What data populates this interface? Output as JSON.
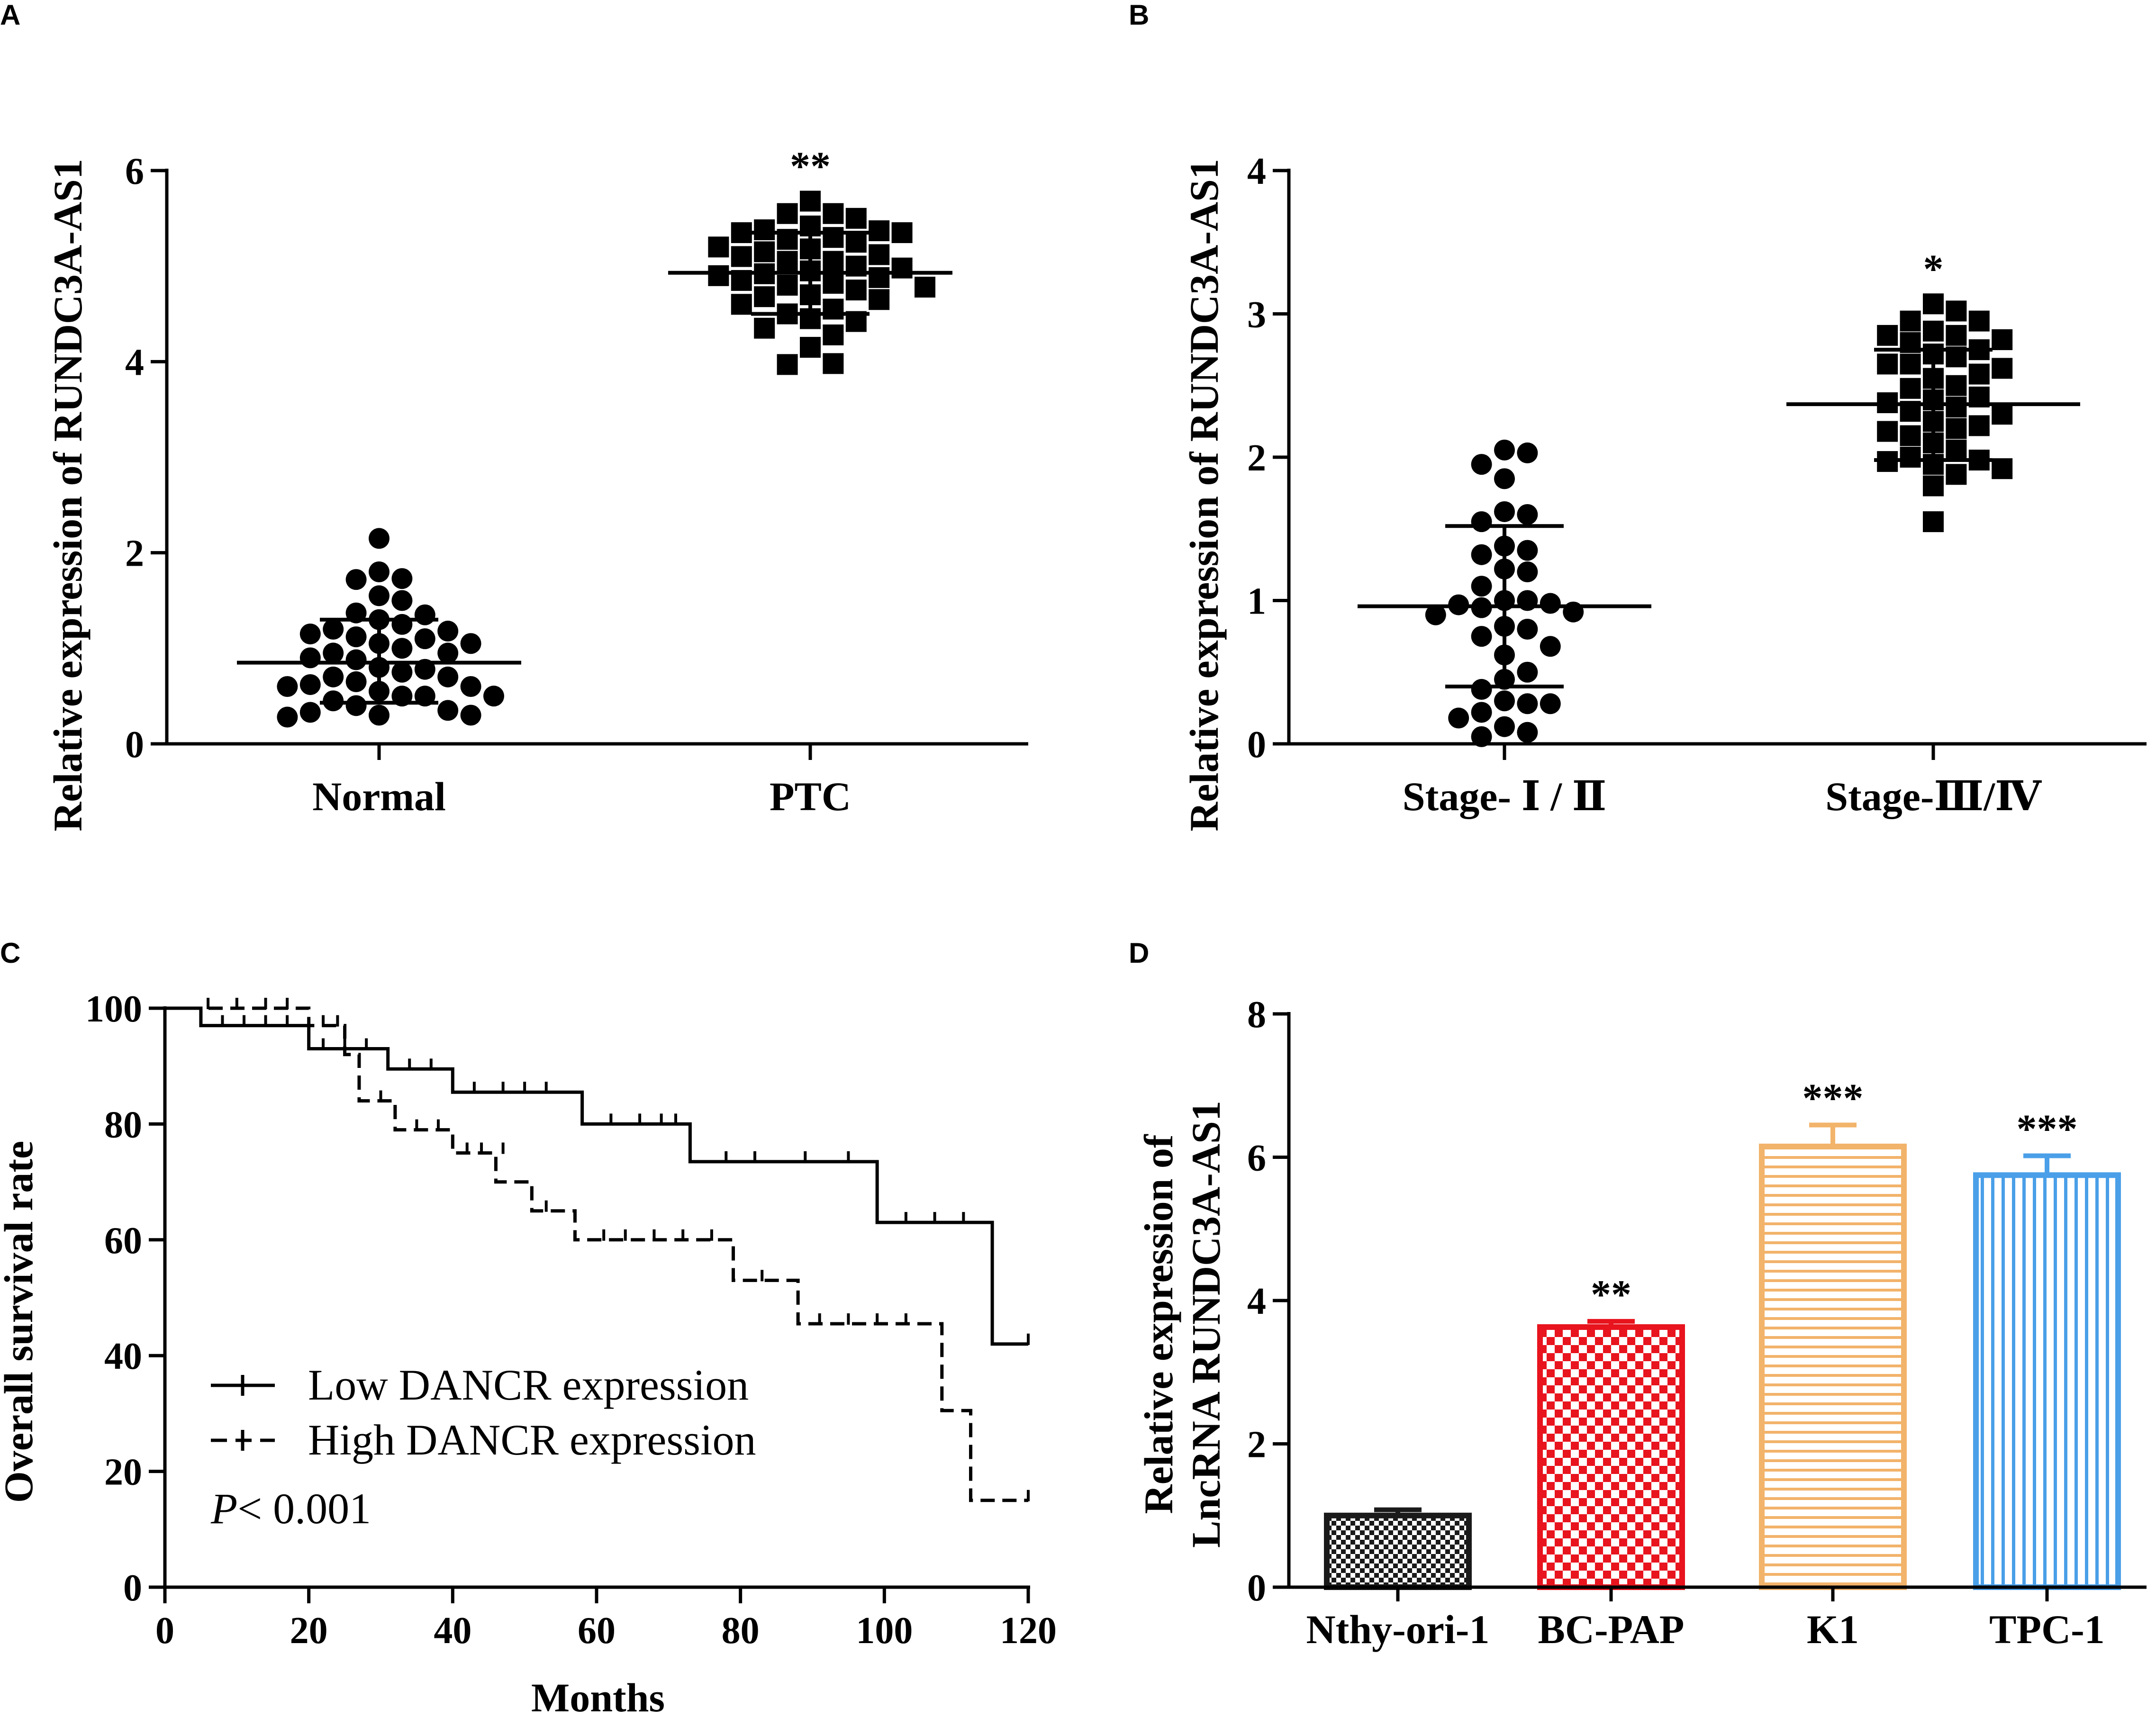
{
  "chart_data": [
    {
      "panel": "A",
      "type": "scatter",
      "ylabel": "Relative expression of RUNDC3A-AS1",
      "ylim": [
        0,
        6
      ],
      "yticks": [
        "0",
        "2",
        "4",
        "6"
      ],
      "categories": [
        "Normal",
        "PTC"
      ],
      "groups": [
        {
          "name": "Normal",
          "marker": "circle",
          "mean": 0.85,
          "sd_low": 0.43,
          "sd_high": 1.3,
          "values": [
            2.15,
            1.72,
            1.73,
            1.8,
            1.5,
            1.55,
            1.35,
            1.37,
            1.3,
            1.25,
            1.2,
            1.18,
            1.15,
            1.12,
            1.1,
            1.05,
            1.05,
            1.0,
            0.95,
            0.95,
            0.9,
            0.88,
            0.8,
            0.78,
            0.75,
            0.7,
            0.7,
            0.65,
            0.62,
            0.6,
            0.6,
            0.55,
            0.5,
            0.5,
            0.45,
            0.4,
            0.35,
            0.33,
            0.3,
            0.3,
            0.28,
            0.5
          ]
        },
        {
          "name": "PTC",
          "marker": "square",
          "mean": 4.93,
          "sd_low": 4.5,
          "sd_high": 5.35,
          "significance": "**",
          "values": [
            5.68,
            5.55,
            5.55,
            5.5,
            5.42,
            5.38,
            5.37,
            5.35,
            5.35,
            5.3,
            5.28,
            5.25,
            5.2,
            5.18,
            5.15,
            5.12,
            5.1,
            5.05,
            5.05,
            5.0,
            4.98,
            4.95,
            4.92,
            4.9,
            4.88,
            4.85,
            4.82,
            4.8,
            4.78,
            4.75,
            4.7,
            4.68,
            4.65,
            4.6,
            4.55,
            4.5,
            4.45,
            4.42,
            4.35,
            4.28,
            4.15,
            3.97,
            3.98
          ]
        }
      ]
    },
    {
      "panel": "B",
      "type": "scatter",
      "ylabel": "Relative expression of RUNDC3A-AS1",
      "ylim": [
        0,
        4
      ],
      "yticks": [
        "0",
        "1",
        "2",
        "3",
        "4"
      ],
      "categories": [
        "Stage- Ⅰ / Ⅱ",
        "Stage-Ⅲ/Ⅳ"
      ],
      "groups": [
        {
          "name": "Stage- Ⅰ / Ⅱ",
          "marker": "circle",
          "mean": 0.96,
          "sd_low": 0.4,
          "sd_high": 1.52,
          "values": [
            2.05,
            2.03,
            1.95,
            1.85,
            1.62,
            1.6,
            1.55,
            1.38,
            1.35,
            1.32,
            1.22,
            1.2,
            1.1,
            1.0,
            1.0,
            0.98,
            0.97,
            0.95,
            0.92,
            0.9,
            0.82,
            0.8,
            0.75,
            0.68,
            0.62,
            0.5,
            0.45,
            0.38,
            0.3,
            0.28,
            0.28,
            0.22,
            0.18,
            0.12,
            0.08,
            0.05
          ]
        },
        {
          "name": "Stage-Ⅲ/Ⅳ",
          "marker": "square",
          "mean": 2.37,
          "sd_low": 1.98,
          "sd_high": 2.75,
          "significance": "*",
          "values": [
            3.07,
            3.02,
            2.95,
            2.95,
            2.88,
            2.85,
            2.85,
            2.82,
            2.8,
            2.75,
            2.72,
            2.7,
            2.65,
            2.65,
            2.62,
            2.58,
            2.55,
            2.5,
            2.48,
            2.42,
            2.4,
            2.38,
            2.35,
            2.32,
            2.3,
            2.25,
            2.22,
            2.2,
            2.18,
            2.15,
            2.1,
            2.05,
            2.0,
            1.98,
            1.97,
            1.95,
            1.92,
            1.88,
            1.8,
            1.55
          ]
        }
      ]
    },
    {
      "panel": "C",
      "type": "line",
      "subtype": "kaplan-meier",
      "xlabel": "Months",
      "ylabel": "Overall survival rate",
      "xlim": [
        0,
        120
      ],
      "ylim": [
        0,
        100
      ],
      "xticks": [
        "0",
        "20",
        "40",
        "60",
        "80",
        "100",
        "120"
      ],
      "yticks": [
        "0",
        "20",
        "40",
        "60",
        "80",
        "100"
      ],
      "annotation": "< 0.001",
      "annotation_italic": "P",
      "series": [
        {
          "name": "Low DANCR expression",
          "style": "solid",
          "steps": [
            [
              0,
              100
            ],
            [
              5,
              97
            ],
            [
              20,
              93
            ],
            [
              31,
              89.5
            ],
            [
              40,
              85.5
            ],
            [
              58,
              80
            ],
            [
              73,
              73.5
            ],
            [
              99,
              63
            ],
            [
              115,
              42
            ],
            [
              120,
              42
            ]
          ],
          "censored": [
            [
              8,
              97
            ],
            [
              11,
              97
            ],
            [
              14,
              97
            ],
            [
              17,
              97
            ],
            [
              22,
              93
            ],
            [
              25,
              93
            ],
            [
              28,
              93
            ],
            [
              34,
              89.5
            ],
            [
              37,
              89.5
            ],
            [
              43,
              85.5
            ],
            [
              47,
              85.5
            ],
            [
              50,
              85.5
            ],
            [
              53,
              85.5
            ],
            [
              62,
              80
            ],
            [
              66,
              80
            ],
            [
              69,
              80
            ],
            [
              71,
              80
            ],
            [
              78,
              73.5
            ],
            [
              82,
              73.5
            ],
            [
              89,
              73.5
            ],
            [
              95,
              73.5
            ],
            [
              103,
              63
            ],
            [
              107,
              63
            ],
            [
              111,
              63
            ],
            [
              120,
              42
            ]
          ]
        },
        {
          "name": "High DANCR expression",
          "style": "dashed",
          "steps": [
            [
              0,
              100
            ],
            [
              20,
              97
            ],
            [
              25,
              92
            ],
            [
              27,
              84
            ],
            [
              32,
              79
            ],
            [
              40,
              75
            ],
            [
              46,
              70
            ],
            [
              51,
              65
            ],
            [
              57,
              60
            ],
            [
              79,
              53
            ],
            [
              88,
              45.5
            ],
            [
              108,
              30.5
            ],
            [
              112,
              15
            ],
            [
              120,
              15
            ]
          ],
          "censored": [
            [
              6,
              100
            ],
            [
              10,
              100
            ],
            [
              14,
              100
            ],
            [
              17,
              100
            ],
            [
              22,
              97
            ],
            [
              24,
              97
            ],
            [
              30,
              84
            ],
            [
              35,
              79
            ],
            [
              38,
              79
            ],
            [
              42,
              75
            ],
            [
              44,
              75
            ],
            [
              47,
              75
            ],
            [
              53,
              65
            ],
            [
              61,
              60
            ],
            [
              64,
              60
            ],
            [
              68,
              60
            ],
            [
              72,
              60
            ],
            [
              76,
              60
            ],
            [
              83,
              53
            ],
            [
              91,
              45.5
            ],
            [
              95,
              45.5
            ],
            [
              99,
              45.5
            ],
            [
              103,
              45.5
            ],
            [
              120,
              15
            ]
          ]
        }
      ]
    },
    {
      "panel": "D",
      "type": "bar",
      "ylabel": [
        "Relative expression of",
        "LncRNA RUNDC3A-AS1"
      ],
      "ylim": [
        0,
        8
      ],
      "yticks": [
        "0",
        "2",
        "4",
        "6",
        "8"
      ],
      "categories": [
        "Nthy-ori-1",
        "BC-PAP",
        "K1",
        "TPC-1"
      ],
      "values": [
        1.0,
        3.63,
        6.15,
        5.75
      ],
      "errors": [
        0.08,
        0.08,
        0.3,
        0.27
      ],
      "significance": [
        "",
        "**",
        "***",
        "***"
      ],
      "colors": [
        "#1a1a1a",
        "#e8141e",
        "#f2b36b",
        "#4a9fe8"
      ]
    }
  ]
}
